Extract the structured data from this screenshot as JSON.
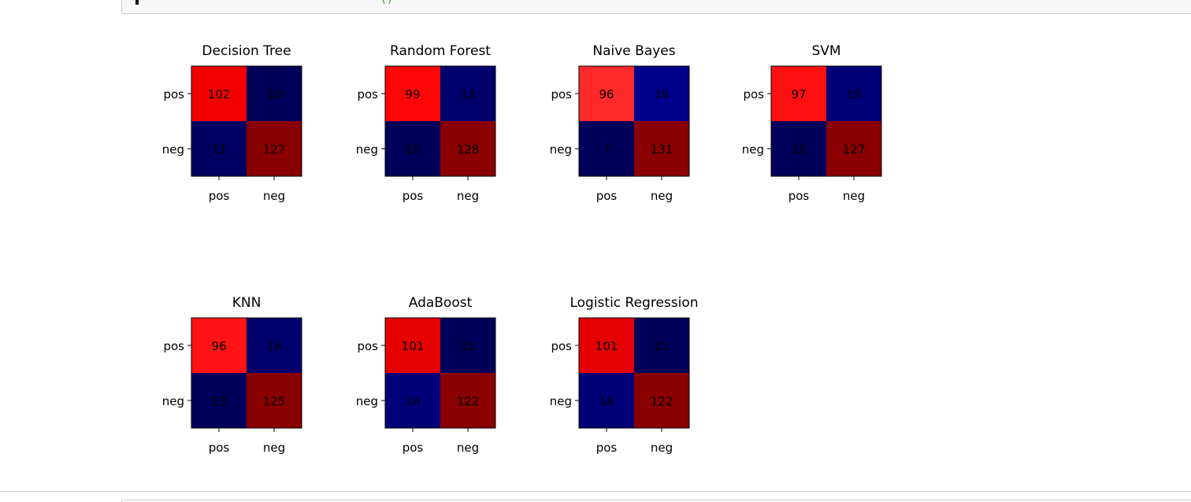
{
  "code_cell": {
    "fragment": "()"
  },
  "chart_data": [
    {
      "type": "heatmap",
      "title": "Decision Tree",
      "row_labels": [
        "pos",
        "neg"
      ],
      "col_labels": [
        "pos",
        "neg"
      ],
      "matrix": [
        [
          102,
          10
        ],
        [
          11,
          127
        ]
      ]
    },
    {
      "type": "heatmap",
      "title": "Random Forest",
      "row_labels": [
        "pos",
        "neg"
      ],
      "col_labels": [
        "pos",
        "neg"
      ],
      "matrix": [
        [
          99,
          13
        ],
        [
          10,
          128
        ]
      ]
    },
    {
      "type": "heatmap",
      "title": "Naive Bayes",
      "row_labels": [
        "pos",
        "neg"
      ],
      "col_labels": [
        "pos",
        "neg"
      ],
      "matrix": [
        [
          96,
          16
        ],
        [
          7,
          131
        ]
      ]
    },
    {
      "type": "heatmap",
      "title": "SVM",
      "row_labels": [
        "pos",
        "neg"
      ],
      "col_labels": [
        "pos",
        "neg"
      ],
      "matrix": [
        [
          97,
          15
        ],
        [
          10,
          127
        ]
      ]
    },
    {
      "type": "heatmap",
      "title": "KNN",
      "row_labels": [
        "pos",
        "neg"
      ],
      "col_labels": [
        "pos",
        "neg"
      ],
      "matrix": [
        [
          96,
          16
        ],
        [
          13,
          125
        ]
      ]
    },
    {
      "type": "heatmap",
      "title": "AdaBoost",
      "row_labels": [
        "pos",
        "neg"
      ],
      "col_labels": [
        "pos",
        "neg"
      ],
      "matrix": [
        [
          101,
          11
        ],
        [
          16,
          122
        ]
      ]
    },
    {
      "type": "heatmap",
      "title": "Logistic Regression",
      "row_labels": [
        "pos",
        "neg"
      ],
      "col_labels": [
        "pos",
        "neg"
      ],
      "matrix": [
        [
          101,
          11
        ],
        [
          16,
          122
        ]
      ]
    }
  ]
}
